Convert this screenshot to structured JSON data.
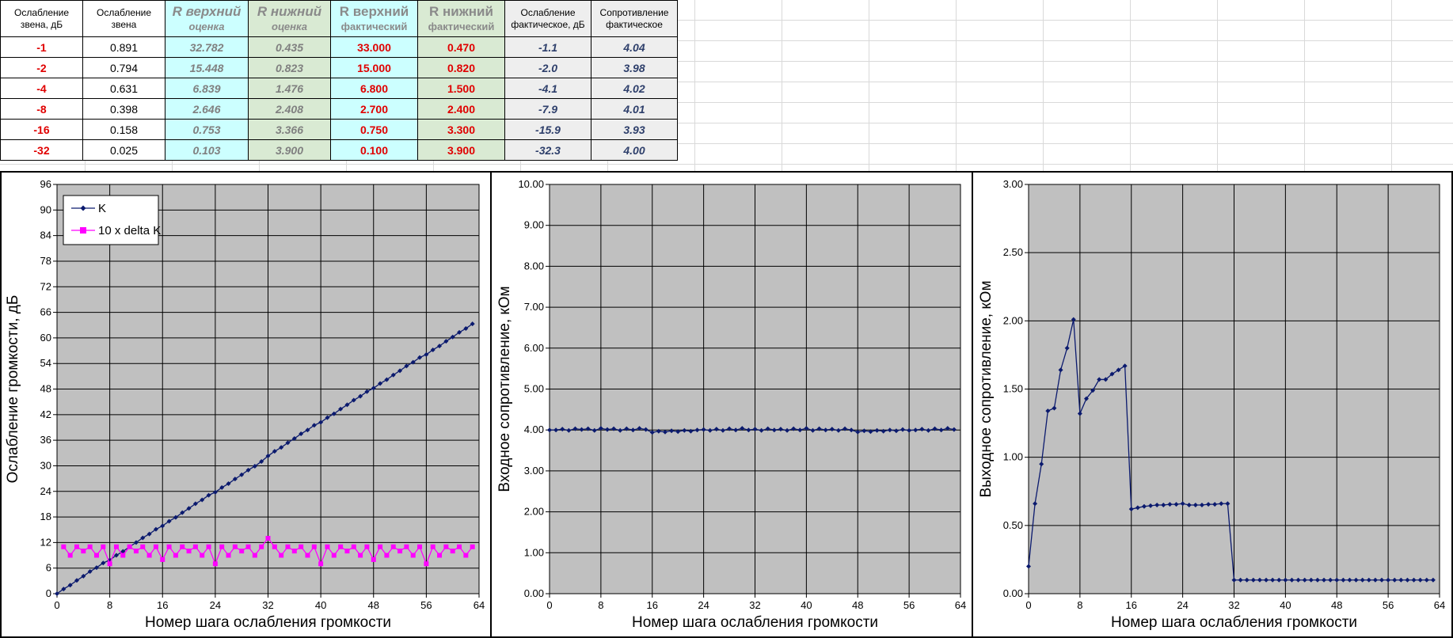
{
  "table": {
    "headers": [
      {
        "top": "Ослабление",
        "bottom": "звена, дБ",
        "style": "plain"
      },
      {
        "top": "Ослабление",
        "bottom": "звена",
        "style": "plain"
      },
      {
        "top": "R верхний",
        "bottom": "оценка",
        "style": "est-cyan"
      },
      {
        "top": "R нижний",
        "bottom": "оценка",
        "style": "est-green"
      },
      {
        "top": "R верхний",
        "bottom": "фактический",
        "style": "fact-cyan"
      },
      {
        "top": "R нижний",
        "bottom": "фактический",
        "style": "fact-green"
      },
      {
        "top": "Ослабление",
        "bottom": "фактическое, дБ",
        "style": "plain"
      },
      {
        "top": "Сопротивление",
        "bottom": "фактическое",
        "style": "plain"
      }
    ],
    "rows": [
      [
        "-1",
        "0.891",
        "32.782",
        "0.435",
        "33.000",
        "0.470",
        "-1.1",
        "4.04"
      ],
      [
        "-2",
        "0.794",
        "15.448",
        "0.823",
        "15.000",
        "0.820",
        "-2.0",
        "3.98"
      ],
      [
        "-4",
        "0.631",
        "6.839",
        "1.476",
        "6.800",
        "1.500",
        "-4.1",
        "4.02"
      ],
      [
        "-8",
        "0.398",
        "2.646",
        "2.408",
        "2.700",
        "2.400",
        "-7.9",
        "4.01"
      ],
      [
        "-16",
        "0.158",
        "0.753",
        "3.366",
        "0.750",
        "3.300",
        "-15.9",
        "3.93"
      ],
      [
        "-32",
        "0.025",
        "0.103",
        "3.900",
        "0.100",
        "3.900",
        "-32.3",
        "4.00"
      ]
    ]
  },
  "colors": {
    "series_navy": "#0b1a6e",
    "series_magenta": "#ff00ff",
    "plot_bg": "#c0c0c0",
    "value_red": "#e00000",
    "cyan_fill": "#ccffff",
    "green_fill": "#d9ead3"
  },
  "chart_data": [
    {
      "type": "line",
      "xlabel": "Номер шага ослабления громкости",
      "ylabel": "Ослабление громкости,  дБ",
      "xlim": [
        0,
        64
      ],
      "ylim": [
        0,
        96
      ],
      "xticks": [
        "0",
        "8",
        "16",
        "24",
        "32",
        "40",
        "48",
        "56",
        "64"
      ],
      "yticks": [
        "0",
        "6",
        "12",
        "18",
        "24",
        "30",
        "36",
        "42",
        "48",
        "54",
        "60",
        "66",
        "72",
        "78",
        "84",
        "90",
        "96"
      ],
      "legend_position": "top-left",
      "grid": true,
      "series": [
        {
          "name": "K",
          "marker": "diamond",
          "color": "#0b1a6e",
          "x": [
            0,
            1,
            2,
            3,
            4,
            5,
            6,
            7,
            8,
            9,
            10,
            11,
            12,
            13,
            14,
            15,
            16,
            17,
            18,
            19,
            20,
            21,
            22,
            23,
            24,
            25,
            26,
            27,
            28,
            29,
            30,
            31,
            32,
            33,
            34,
            35,
            36,
            37,
            38,
            39,
            40,
            41,
            42,
            43,
            44,
            45,
            46,
            47,
            48,
            49,
            50,
            51,
            52,
            53,
            54,
            55,
            56,
            57,
            58,
            59,
            60,
            61,
            62,
            63
          ],
          "values": [
            0.0,
            1.1,
            2.0,
            3.1,
            4.1,
            5.2,
            6.1,
            7.2,
            7.9,
            9.0,
            9.9,
            11.0,
            12.0,
            13.1,
            14.0,
            15.1,
            15.9,
            17.0,
            17.9,
            19.0,
            20.0,
            21.1,
            22.0,
            23.1,
            23.8,
            24.9,
            25.8,
            26.9,
            27.9,
            29.0,
            29.9,
            31.0,
            32.3,
            33.4,
            34.3,
            35.4,
            36.4,
            37.5,
            38.4,
            39.5,
            40.2,
            41.3,
            42.2,
            43.3,
            44.3,
            45.4,
            46.3,
            47.4,
            48.2,
            49.3,
            50.2,
            51.3,
            52.3,
            53.4,
            54.3,
            55.4,
            56.1,
            57.2,
            58.1,
            59.2,
            60.2,
            61.3,
            62.2,
            63.3
          ]
        },
        {
          "name": "10 x delta K",
          "marker": "square",
          "color": "#ff00ff",
          "x": [
            1,
            2,
            3,
            4,
            5,
            6,
            7,
            8,
            9,
            10,
            11,
            12,
            13,
            14,
            15,
            16,
            17,
            18,
            19,
            20,
            21,
            22,
            23,
            24,
            25,
            26,
            27,
            28,
            29,
            30,
            31,
            32,
            33,
            34,
            35,
            36,
            37,
            38,
            39,
            40,
            41,
            42,
            43,
            44,
            45,
            46,
            47,
            48,
            49,
            50,
            51,
            52,
            53,
            54,
            55,
            56,
            57,
            58,
            59,
            60,
            61,
            62,
            63
          ],
          "values": [
            11,
            9,
            11,
            10,
            11,
            9,
            11,
            7,
            11,
            9,
            11,
            10,
            11,
            9,
            11,
            8,
            11,
            9,
            11,
            10,
            11,
            9,
            11,
            7,
            11,
            9,
            11,
            10,
            11,
            9,
            11,
            13,
            11,
            9,
            11,
            10,
            11,
            9,
            11,
            7,
            11,
            9,
            11,
            10,
            11,
            9,
            11,
            8,
            11,
            9,
            11,
            10,
            11,
            9,
            11,
            7,
            11,
            9,
            11,
            10,
            11,
            9,
            11
          ]
        }
      ]
    },
    {
      "type": "line",
      "xlabel": "Номер шага ослабления громкости",
      "ylabel": "Входное сопротивление, кОм",
      "xlim": [
        0,
        64
      ],
      "ylim": [
        0,
        10
      ],
      "xticks": [
        "0",
        "8",
        "16",
        "24",
        "32",
        "40",
        "48",
        "56",
        "64"
      ],
      "yticks": [
        "0.00",
        "1.00",
        "2.00",
        "3.00",
        "4.00",
        "5.00",
        "6.00",
        "7.00",
        "8.00",
        "9.00",
        "10.00"
      ],
      "grid": true,
      "series": [
        {
          "marker": "diamond",
          "color": "#0b1a6e",
          "x": [
            0,
            1,
            2,
            3,
            4,
            5,
            6,
            7,
            8,
            9,
            10,
            11,
            12,
            13,
            14,
            15,
            16,
            17,
            18,
            19,
            20,
            21,
            22,
            23,
            24,
            25,
            26,
            27,
            28,
            29,
            30,
            31,
            32,
            33,
            34,
            35,
            36,
            37,
            38,
            39,
            40,
            41,
            42,
            43,
            44,
            45,
            46,
            47,
            48,
            49,
            50,
            51,
            52,
            53,
            54,
            55,
            56,
            57,
            58,
            59,
            60,
            61,
            62,
            63
          ],
          "values": [
            4.0,
            4.0,
            4.02,
            3.99,
            4.03,
            4.01,
            4.03,
            3.99,
            4.04,
            4.01,
            4.03,
            3.99,
            4.03,
            4.0,
            4.04,
            4.01,
            3.94,
            3.97,
            3.95,
            3.98,
            3.96,
            3.99,
            3.97,
            4.0,
            4.01,
            3.99,
            4.02,
            3.99,
            4.03,
            4.0,
            4.04,
            4.0,
            4.02,
            3.99,
            4.03,
            4.0,
            4.02,
            3.99,
            4.03,
            4.0,
            4.04,
            3.99,
            4.03,
            4.0,
            4.02,
            3.99,
            4.03,
            4.0,
            3.95,
            3.98,
            3.96,
            3.99,
            3.97,
            4.0,
            3.98,
            4.01,
            3.99,
            4.0,
            4.02,
            3.99,
            4.03,
            4.0,
            4.04,
            4.01
          ]
        }
      ]
    },
    {
      "type": "line",
      "xlabel": "Номер шага ослабления громкости",
      "ylabel": "Выходное сопротивление, кОм",
      "xlim": [
        0,
        64
      ],
      "ylim": [
        0,
        3
      ],
      "xticks": [
        "0",
        "8",
        "16",
        "24",
        "32",
        "40",
        "48",
        "56",
        "64"
      ],
      "yticks": [
        "0.00",
        "0.50",
        "1.00",
        "1.50",
        "2.00",
        "2.50",
        "3.00"
      ],
      "grid": true,
      "series": [
        {
          "marker": "diamond",
          "color": "#0b1a6e",
          "x": [
            0,
            1,
            2,
            3,
            4,
            5,
            6,
            7,
            8,
            9,
            10,
            11,
            12,
            13,
            14,
            15,
            16,
            17,
            18,
            19,
            20,
            21,
            22,
            23,
            24,
            25,
            26,
            27,
            28,
            29,
            30,
            31,
            32,
            33,
            34,
            35,
            36,
            37,
            38,
            39,
            40,
            41,
            42,
            43,
            44,
            45,
            46,
            47,
            48,
            49,
            50,
            51,
            52,
            53,
            54,
            55,
            56,
            57,
            58,
            59,
            60,
            61,
            62,
            63
          ],
          "values": [
            0.2,
            0.66,
            0.95,
            1.34,
            1.36,
            1.64,
            1.8,
            2.01,
            1.32,
            1.43,
            1.49,
            1.57,
            1.57,
            1.61,
            1.64,
            1.67,
            0.62,
            0.63,
            0.64,
            0.645,
            0.65,
            0.65,
            0.655,
            0.655,
            0.66,
            0.65,
            0.65,
            0.65,
            0.655,
            0.655,
            0.66,
            0.66,
            0.1,
            0.1,
            0.1,
            0.1,
            0.1,
            0.1,
            0.1,
            0.1,
            0.1,
            0.1,
            0.1,
            0.1,
            0.1,
            0.1,
            0.1,
            0.1,
            0.1,
            0.1,
            0.1,
            0.1,
            0.1,
            0.1,
            0.1,
            0.1,
            0.1,
            0.1,
            0.1,
            0.1,
            0.1,
            0.1,
            0.1,
            0.1
          ]
        }
      ]
    }
  ]
}
